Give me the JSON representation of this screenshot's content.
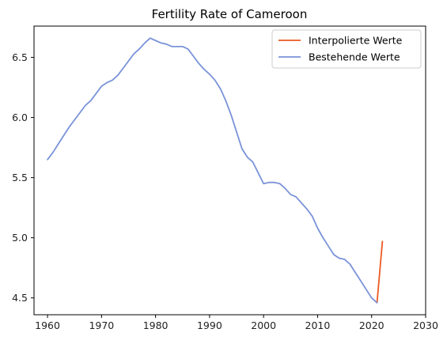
{
  "chart_data": {
    "type": "line",
    "title": "Fertility Rate of Cameroon",
    "xlabel": "",
    "ylabel": "",
    "xlim": [
      1957.5,
      2030
    ],
    "ylim": [
      4.36,
      6.76
    ],
    "x_ticks": [
      1960,
      1970,
      1980,
      1990,
      2000,
      2010,
      2020,
      2030
    ],
    "y_ticks": [
      4.5,
      5.0,
      5.5,
      6.0,
      6.5
    ],
    "y_tick_labels": [
      "4.5",
      "5.0",
      "5.5",
      "6.0",
      "6.5"
    ],
    "grid": false,
    "legend_position": "top-right",
    "series": [
      {
        "name": "Interpolierte Werte",
        "color": "#ec5a22",
        "x": [
          2021,
          2022
        ],
        "y": [
          4.46,
          4.97
        ]
      },
      {
        "name": "Bestehende Werte",
        "color": "#7a93d8",
        "x": [
          1960,
          1961,
          1962,
          1963,
          1964,
          1965,
          1966,
          1967,
          1968,
          1969,
          1970,
          1971,
          1972,
          1973,
          1974,
          1975,
          1976,
          1977,
          1978,
          1979,
          1980,
          1981,
          1982,
          1983,
          1984,
          1985,
          1986,
          1987,
          1988,
          1989,
          1990,
          1991,
          1992,
          1993,
          1994,
          1995,
          1996,
          1997,
          1998,
          1999,
          2000,
          2001,
          2002,
          2003,
          2004,
          2005,
          2006,
          2007,
          2008,
          2009,
          2010,
          2011,
          2012,
          2013,
          2014,
          2015,
          2016,
          2017,
          2018,
          2019,
          2020,
          2021
        ],
        "y": [
          5.65,
          5.71,
          5.78,
          5.85,
          5.92,
          5.98,
          6.04,
          6.1,
          6.14,
          6.2,
          6.26,
          6.29,
          6.31,
          6.35,
          6.41,
          6.47,
          6.53,
          6.57,
          6.62,
          6.66,
          6.64,
          6.62,
          6.61,
          6.59,
          6.59,
          6.59,
          6.57,
          6.51,
          6.45,
          6.4,
          6.36,
          6.31,
          6.24,
          6.14,
          6.02,
          5.88,
          5.74,
          5.67,
          5.63,
          5.54,
          5.45,
          5.46,
          5.46,
          5.45,
          5.41,
          5.36,
          5.34,
          5.29,
          5.24,
          5.18,
          5.08,
          5.0,
          4.93,
          4.86,
          4.83,
          4.82,
          4.78,
          4.71,
          4.64,
          4.57,
          4.5,
          4.46
        ]
      }
    ]
  }
}
